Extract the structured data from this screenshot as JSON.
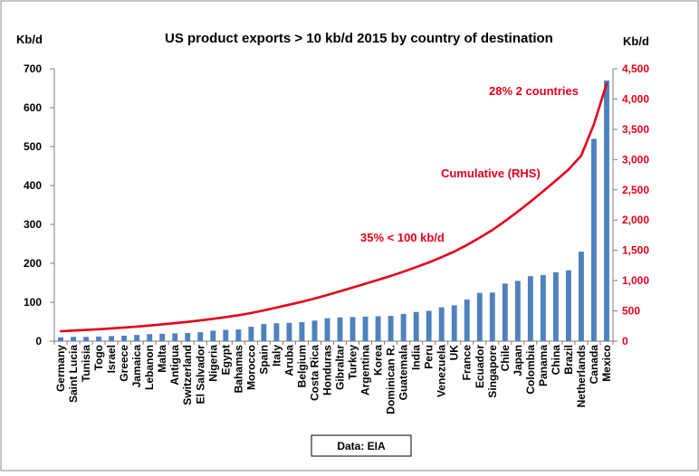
{
  "chart_data": {
    "type": "bar",
    "title": "US product exports  > 10 kb/d  2015 by country of destination",
    "ylabel_left": "Kb/d",
    "ylabel_right": "Kb/d",
    "source": "Data: EIA",
    "ylim_left": [
      0,
      700
    ],
    "ylim_right": [
      0,
      4500
    ],
    "yticks_left": [
      0,
      100,
      200,
      300,
      400,
      500,
      600,
      700
    ],
    "yticks_right": [
      0,
      500,
      1000,
      1500,
      2000,
      2500,
      3000,
      3500,
      4000,
      4500
    ],
    "ytick_labels_left": [
      "0",
      "100",
      "200",
      "300",
      "400",
      "500",
      "600",
      "700"
    ],
    "ytick_labels_right": [
      "0",
      "500",
      "1,000",
      "1,500",
      "2,000",
      "2,500",
      "3,000",
      "3,500",
      "4,000",
      "4,500"
    ],
    "grid": false,
    "categories": [
      "Germany",
      "Saint Lucia",
      "Tunisia",
      "Togo",
      "Israel",
      "Greece",
      "Jamaica",
      "Lebanon",
      "Malta",
      "Antigua",
      "Switzerland",
      "El Salvador",
      "Nigeria",
      "Egypt",
      "Bahamas",
      "Morocco",
      "Spain",
      "Italy",
      "Aruba",
      "Belgium",
      "Costa Rica",
      "Honduras",
      "Gibraltar",
      "Turkey",
      "Argentina",
      "Korea",
      "Dominican R.",
      "Guatemala",
      "India",
      "Peru",
      "Venezuela",
      "UK",
      "France",
      "Ecuador",
      "Singapore",
      "Chile",
      "Japan",
      "Colombia",
      "Panama",
      "China",
      "Brazil",
      "Netherlands",
      "Canada",
      "Mexico"
    ],
    "series": [
      {
        "type": "bar",
        "axis": "left",
        "color": "#4f81bd",
        "values": [
          10,
          11,
          11,
          12,
          13,
          14,
          16,
          18,
          19,
          20,
          21,
          23,
          27,
          29,
          30,
          37,
          44,
          46,
          47,
          49,
          53,
          59,
          61,
          62,
          63,
          64,
          65,
          70,
          75,
          78,
          87,
          92,
          107,
          124,
          125,
          148,
          155,
          167,
          170,
          177,
          182,
          230,
          520,
          670
        ]
      },
      {
        "type": "line",
        "name": "Cumulative (RHS)",
        "axis": "right",
        "color": "#e3001b",
        "values": [
          164,
          175,
          186,
          198,
          211,
          225,
          241,
          259,
          278,
          298,
          319,
          342,
          369,
          398,
          428,
          465,
          509,
          555,
          602,
          651,
          704,
          763,
          824,
          886,
          949,
          1013,
          1078,
          1148,
          1223,
          1301,
          1388,
          1480,
          1587,
          1711,
          1836,
          1984,
          2139,
          2306,
          2476,
          2653,
          2835,
          3065,
          3585,
          4255
        ]
      }
    ],
    "annotations": [
      {
        "text": "28% 2 countries"
      },
      {
        "text": "Cumulative (RHS)"
      },
      {
        "text": "35% < 100 kb/d"
      }
    ]
  }
}
